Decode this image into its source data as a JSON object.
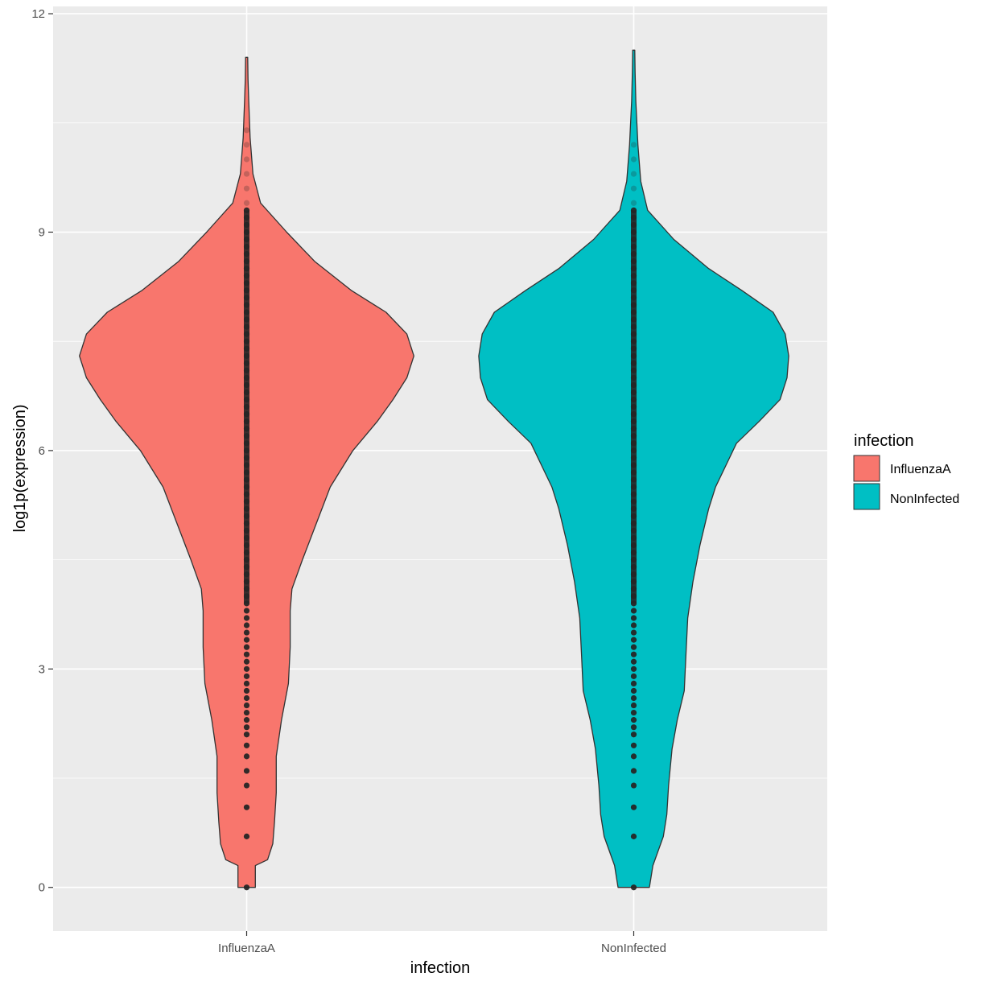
{
  "chart_data": {
    "type": "violin",
    "xlabel": "infection",
    "ylabel": "log1p(expression)",
    "categories": [
      "InfluenzaA",
      "NonInfected"
    ],
    "ylim": [
      -0.6,
      12.1
    ],
    "yticks": [
      0,
      3,
      6,
      9,
      12
    ],
    "grid": true,
    "legend": {
      "title": "infection",
      "position": "right",
      "entries": [
        {
          "label": "InfluenzaA",
          "color": "#F8766D"
        },
        {
          "label": "NonInfected",
          "color": "#00BFC4"
        }
      ]
    },
    "colors": {
      "panel_background": "#EBEBEB",
      "grid": "#FFFFFF",
      "outline": "#333333",
      "points": "#262626"
    },
    "series": [
      {
        "name": "InfluenzaA",
        "color": "#F8766D",
        "y_min": 0.0,
        "y_max": 11.4,
        "density_profile": [
          [
            0.0,
            0.05
          ],
          [
            0.3,
            0.05
          ],
          [
            0.38,
            0.12
          ],
          [
            0.6,
            0.15
          ],
          [
            0.9,
            0.16
          ],
          [
            1.3,
            0.17
          ],
          [
            1.8,
            0.17
          ],
          [
            2.3,
            0.2
          ],
          [
            2.8,
            0.24
          ],
          [
            3.3,
            0.25
          ],
          [
            3.8,
            0.25
          ],
          [
            4.1,
            0.26
          ],
          [
            4.5,
            0.32
          ],
          [
            5.0,
            0.4
          ],
          [
            5.5,
            0.48
          ],
          [
            6.0,
            0.61
          ],
          [
            6.4,
            0.75
          ],
          [
            6.7,
            0.84
          ],
          [
            7.0,
            0.92
          ],
          [
            7.3,
            0.96
          ],
          [
            7.6,
            0.92
          ],
          [
            7.9,
            0.8
          ],
          [
            8.2,
            0.6
          ],
          [
            8.6,
            0.39
          ],
          [
            9.0,
            0.23
          ],
          [
            9.4,
            0.08
          ],
          [
            9.8,
            0.036
          ],
          [
            10.3,
            0.02
          ],
          [
            10.8,
            0.012
          ],
          [
            11.1,
            0.008
          ],
          [
            11.4,
            0.006
          ]
        ],
        "points": [
          0.0,
          0.7,
          1.1,
          1.4,
          1.6,
          1.8,
          1.95,
          2.1,
          2.2,
          2.3,
          2.4,
          2.5,
          2.6,
          2.7,
          2.8,
          2.9,
          3.0,
          3.1,
          3.2,
          3.3,
          3.4,
          3.5,
          3.6,
          3.7,
          3.8,
          3.9,
          4.0,
          4.1,
          4.2,
          4.3,
          4.4,
          4.5,
          4.6,
          4.7,
          4.8,
          4.9,
          5.0,
          5.1,
          5.2,
          5.3,
          5.4,
          5.5,
          5.6,
          5.7,
          5.8,
          5.9,
          6.0,
          6.1,
          6.2,
          6.3,
          6.4,
          6.5,
          6.6,
          6.7,
          6.8,
          6.9,
          7.0,
          7.1,
          7.2,
          7.3,
          7.4,
          7.5,
          7.6,
          7.7,
          7.8,
          7.9,
          8.0,
          8.1,
          8.2,
          8.3,
          8.4,
          8.5,
          8.6,
          8.7,
          8.8,
          8.9,
          9.0,
          9.1,
          9.2,
          9.3,
          9.4,
          9.6,
          9.8,
          10.0,
          10.2,
          10.4
        ]
      },
      {
        "name": "NonInfected",
        "color": "#00BFC4",
        "y_min": 0.0,
        "y_max": 11.5,
        "density_profile": [
          [
            0.0,
            0.09
          ],
          [
            0.3,
            0.11
          ],
          [
            0.5,
            0.14
          ],
          [
            0.7,
            0.17
          ],
          [
            1.0,
            0.19
          ],
          [
            1.4,
            0.2
          ],
          [
            1.9,
            0.22
          ],
          [
            2.3,
            0.25
          ],
          [
            2.7,
            0.29
          ],
          [
            3.2,
            0.3
          ],
          [
            3.7,
            0.31
          ],
          [
            4.2,
            0.34
          ],
          [
            4.7,
            0.38
          ],
          [
            5.2,
            0.43
          ],
          [
            5.5,
            0.47
          ],
          [
            5.8,
            0.53
          ],
          [
            6.1,
            0.59
          ],
          [
            6.4,
            0.72
          ],
          [
            6.7,
            0.84
          ],
          [
            7.0,
            0.88
          ],
          [
            7.3,
            0.89
          ],
          [
            7.6,
            0.87
          ],
          [
            7.9,
            0.8
          ],
          [
            8.2,
            0.62
          ],
          [
            8.5,
            0.43
          ],
          [
            8.9,
            0.23
          ],
          [
            9.3,
            0.08
          ],
          [
            9.7,
            0.04
          ],
          [
            10.2,
            0.024
          ],
          [
            10.8,
            0.012
          ],
          [
            11.2,
            0.008
          ],
          [
            11.5,
            0.006
          ]
        ],
        "points": [
          0.0,
          0.7,
          1.1,
          1.4,
          1.6,
          1.8,
          1.95,
          2.1,
          2.2,
          2.3,
          2.4,
          2.5,
          2.6,
          2.7,
          2.8,
          2.9,
          3.0,
          3.1,
          3.2,
          3.3,
          3.4,
          3.5,
          3.6,
          3.7,
          3.8,
          3.9,
          4.0,
          4.1,
          4.2,
          4.3,
          4.4,
          4.5,
          4.6,
          4.7,
          4.8,
          4.9,
          5.0,
          5.1,
          5.2,
          5.3,
          5.4,
          5.5,
          5.6,
          5.7,
          5.8,
          5.9,
          6.0,
          6.1,
          6.2,
          6.3,
          6.4,
          6.5,
          6.6,
          6.7,
          6.8,
          6.9,
          7.0,
          7.1,
          7.2,
          7.3,
          7.4,
          7.5,
          7.6,
          7.7,
          7.8,
          7.9,
          8.0,
          8.1,
          8.2,
          8.3,
          8.4,
          8.5,
          8.6,
          8.7,
          8.8,
          8.9,
          9.0,
          9.1,
          9.2,
          9.3,
          9.4,
          9.6,
          9.8,
          10.0,
          10.2
        ]
      }
    ]
  }
}
